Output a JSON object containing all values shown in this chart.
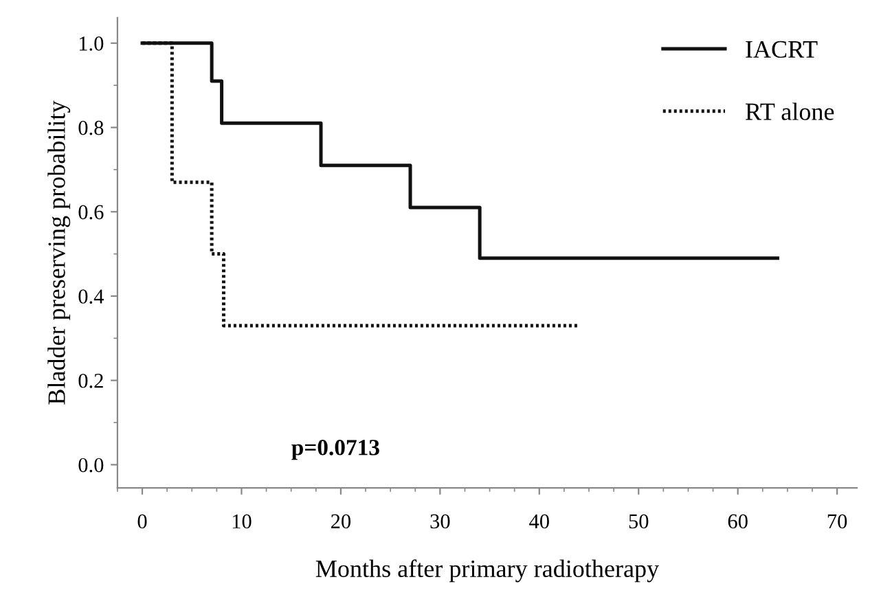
{
  "chart_data": {
    "type": "step",
    "xlabel": "Months after primary radiotherapy",
    "ylabel": "Bladder preserving probability",
    "xlim": [
      -2.5,
      72
    ],
    "xticks": [
      0,
      10,
      20,
      30,
      40,
      50,
      60,
      70
    ],
    "ylim": [
      -0.055,
      1.06
    ],
    "yticks": [
      {
        "value": 0,
        "label": "0.0"
      },
      0.2,
      0.4,
      0.6,
      0.8,
      {
        "value": 1,
        "label": "1.0"
      }
    ],
    "grid": false,
    "legend": "top right",
    "annotations": [
      "p=0.0713"
    ],
    "series": [
      {
        "name": "IACRT",
        "color": "#111111",
        "line_style": "solid",
        "x": [
          0,
          7,
          8,
          18,
          27,
          34,
          64
        ],
        "values": [
          1.0,
          0.91,
          0.81,
          0.71,
          0.61,
          0.49,
          0.49
        ]
      },
      {
        "name": "RT alone",
        "color": "#111111",
        "line_style": "dotted",
        "x": [
          0,
          3,
          7,
          8.2,
          44
        ],
        "values": [
          1.0,
          0.67,
          0.5,
          0.33,
          0.33
        ]
      }
    ]
  }
}
